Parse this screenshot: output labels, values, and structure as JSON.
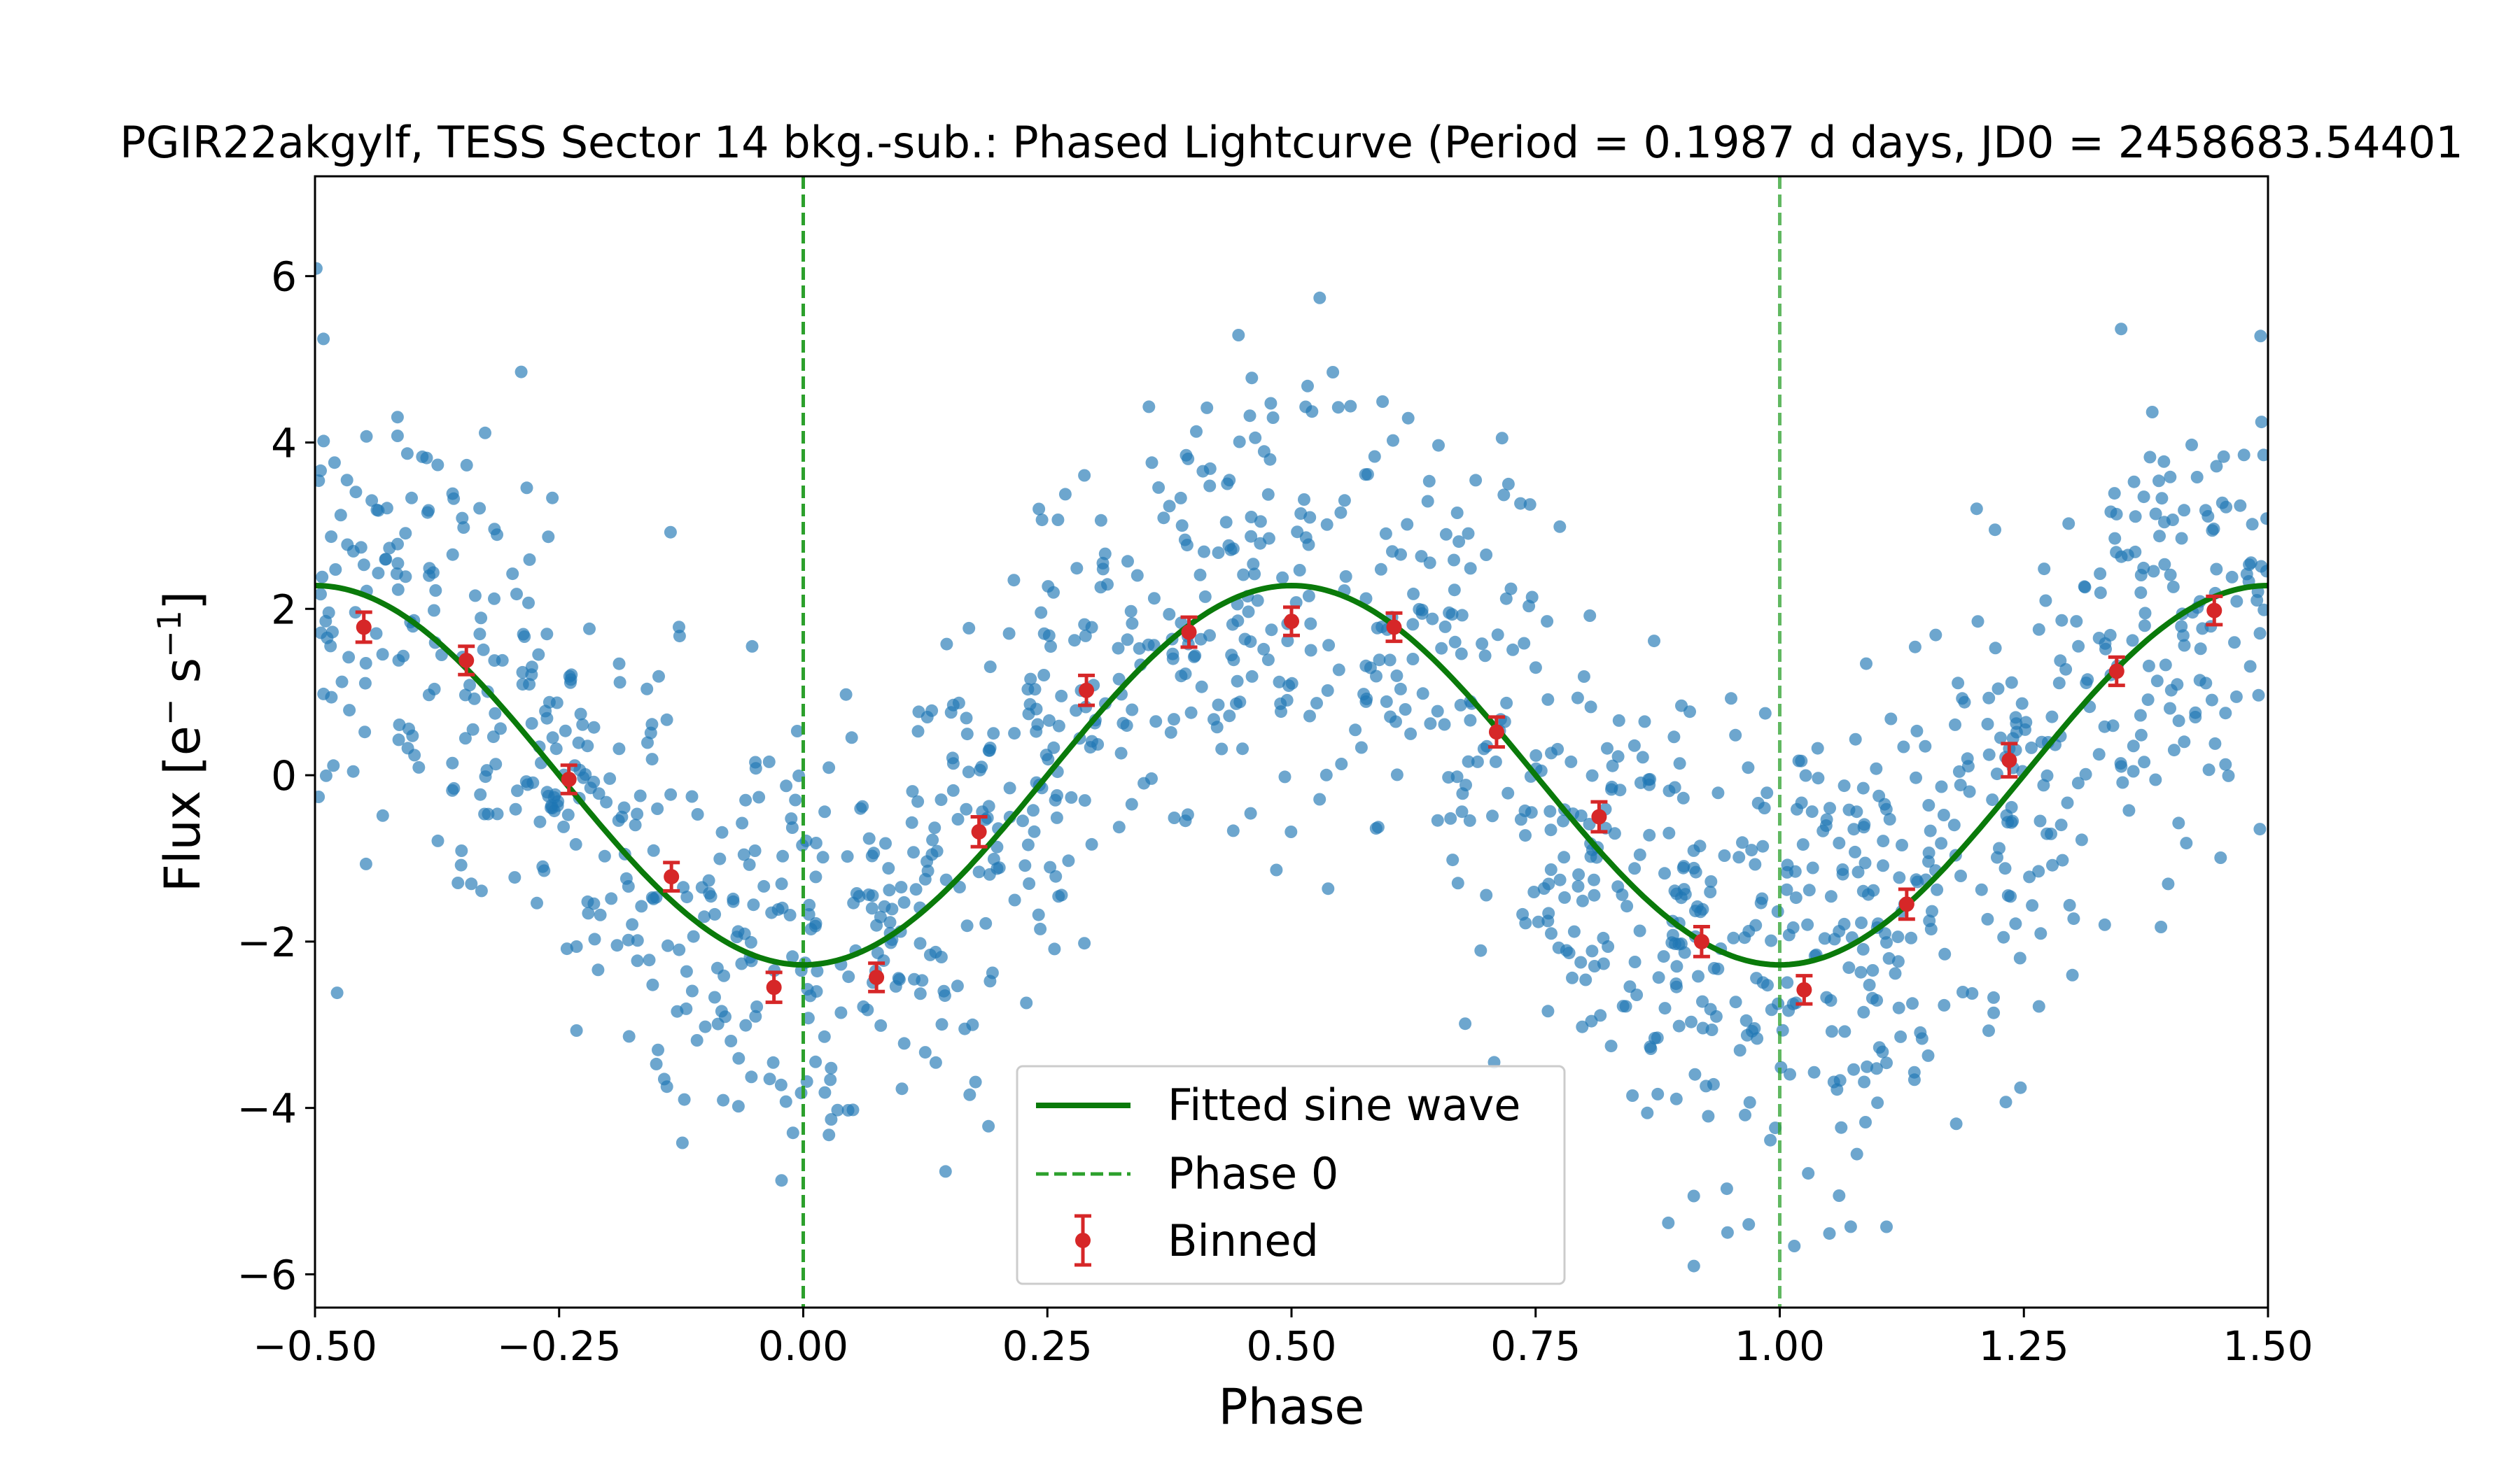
{
  "chart_data": {
    "type": "scatter",
    "title": "PGIR22akgylf, TESS Sector 14 bkg.-sub.: Phased Lightcurve (Period = 0.1987 d days, JD0 = 2458683.54401",
    "xlabel": "Phase",
    "ylabel_main": "Flux [e",
    "ylabel_sup1": "−",
    "ylabel_mid": " s",
    "ylabel_sup2": "−1",
    "ylabel_end": "]",
    "xlim": [
      -0.5,
      1.5
    ],
    "ylim": [
      -6.4,
      7.2
    ],
    "xticks": [
      -0.5,
      -0.25,
      0.0,
      0.25,
      0.5,
      0.75,
      1.0,
      1.25,
      1.5
    ],
    "xtick_labels": [
      "−0.50",
      "−0.25",
      "0.00",
      "0.25",
      "0.50",
      "0.75",
      "1.00",
      "1.25",
      "1.50"
    ],
    "yticks": [
      -6,
      -4,
      -2,
      0,
      2,
      4,
      6
    ],
    "ytick_labels": [
      "−6",
      "−4",
      "−2",
      "0",
      "2",
      "4",
      "6"
    ],
    "grid": false,
    "legend_position": "lower-center",
    "colors": {
      "scatter": "#1f77b4",
      "fit": "#0a7a0a",
      "phase_line": "#2ca02c",
      "binned": "#d62728"
    },
    "sine_fit": {
      "amplitude": 2.28,
      "offset": 0.0,
      "period_in_phase": 1.0,
      "min_phase": 0.0,
      "max_phase": 0.5
    },
    "phase_zero_lines": [
      0.0,
      1.0
    ],
    "binned": {
      "x": [
        -0.45,
        -0.345,
        -0.24,
        -0.135,
        -0.03,
        0.075,
        0.18,
        0.29,
        0.395,
        0.5,
        0.605,
        0.71,
        0.815,
        0.92,
        1.025,
        1.13,
        1.235,
        1.345,
        1.445
      ],
      "y": [
        1.78,
        1.38,
        -0.05,
        -1.22,
        -2.55,
        -2.43,
        -0.68,
        1.02,
        1.72,
        1.85,
        1.78,
        0.52,
        -0.5,
        -2.0,
        -2.58,
        -1.55,
        0.18,
        1.25,
        1.98
      ],
      "yerr": [
        0.18,
        0.17,
        0.17,
        0.17,
        0.18,
        0.17,
        0.18,
        0.18,
        0.18,
        0.17,
        0.17,
        0.18,
        0.18,
        0.18,
        0.17,
        0.18,
        0.2,
        0.17,
        0.17
      ]
    },
    "scatter_summary": {
      "n_points_shown": 1400,
      "scatter_sigma": 1.4
    },
    "legend": [
      {
        "label": "Fitted sine wave",
        "marker": "solid-line"
      },
      {
        "label": "Phase 0",
        "marker": "dashed-line"
      },
      {
        "label": "Binned",
        "marker": "errorbar-point"
      }
    ]
  }
}
